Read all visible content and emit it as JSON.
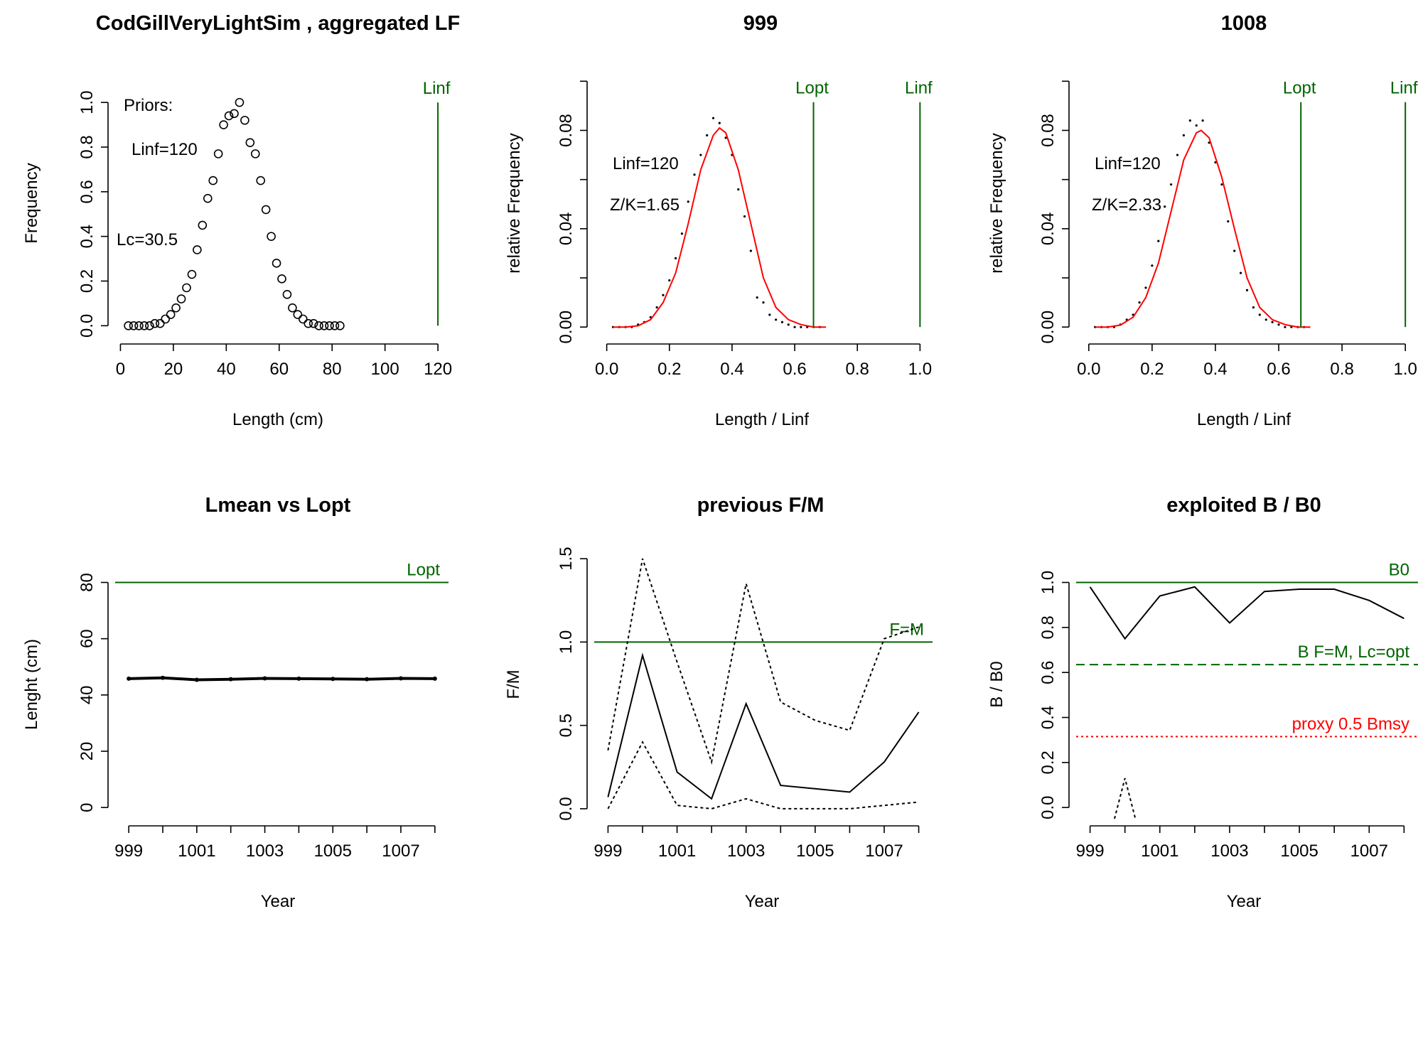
{
  "figure": {
    "background": "#ffffff",
    "line_color": "#000000",
    "fit_color": "#ff0000",
    "ref_color": "#006400",
    "proxy_color": "#ff0000"
  },
  "chart_data": [
    {
      "id": "p1",
      "type": "scatter",
      "title": "CodGillVeryLightSim , aggregated LF",
      "xlabel": "Length (cm)",
      "ylabel": "Frequency",
      "xlim": [
        -2,
        124
      ],
      "ylim": [
        -0.05,
        1.15
      ],
      "xticks": [
        0,
        20,
        40,
        60,
        80,
        100,
        120
      ],
      "yticks": [
        0.0,
        0.2,
        0.4,
        0.6,
        0.8,
        1.0
      ],
      "xtick_labels": [
        "0",
        "20",
        "40",
        "60",
        "80",
        "100",
        "120"
      ],
      "ytick_labels": [
        "0.0",
        "0.2",
        "0.4",
        "0.6",
        "0.8",
        "1.0"
      ],
      "points": {
        "x": [
          3,
          5,
          7,
          9,
          11,
          13,
          15,
          17,
          19,
          21,
          23,
          25,
          27,
          29,
          31,
          33,
          35,
          37,
          39,
          41,
          43,
          45,
          47,
          49,
          51,
          53,
          55,
          57,
          59,
          61,
          63,
          65,
          67,
          69,
          71,
          73,
          75,
          77,
          79,
          81,
          83
        ],
        "y": [
          0.0,
          0.0,
          0.0,
          0.0,
          0.0,
          0.01,
          0.01,
          0.03,
          0.05,
          0.08,
          0.12,
          0.17,
          0.23,
          0.34,
          0.45,
          0.57,
          0.65,
          0.77,
          0.9,
          0.94,
          0.95,
          1.0,
          0.92,
          0.82,
          0.77,
          0.65,
          0.52,
          0.4,
          0.28,
          0.21,
          0.14,
          0.08,
          0.05,
          0.03,
          0.01,
          0.01,
          0.0,
          0.0,
          0.0,
          0.0,
          0.0
        ]
      },
      "vlines": [
        {
          "x": 120,
          "y_top": 1.0,
          "label": "Linf"
        }
      ],
      "annotations": [
        "Priors:",
        "Linf=120",
        "Lc=30.5"
      ]
    },
    {
      "id": "p2",
      "type": "line",
      "title": "999",
      "xlabel": "Length / Linf",
      "ylabel": "relative Frequency",
      "xlim": [
        -0.04,
        1.04
      ],
      "ylim": [
        -0.004,
        0.105
      ],
      "xticks": [
        0.0,
        0.2,
        0.4,
        0.6,
        0.8,
        1.0
      ],
      "yticks": [
        0.0,
        0.02,
        0.04,
        0.06,
        0.08,
        0.1
      ],
      "xtick_labels": [
        "0.0",
        "0.2",
        "0.4",
        "0.6",
        "0.8",
        "1.0"
      ],
      "ytick_labels": [
        "0.00",
        "",
        "0.04",
        "",
        "0.08",
        ""
      ],
      "fit": {
        "x": [
          0.02,
          0.06,
          0.1,
          0.14,
          0.18,
          0.22,
          0.26,
          0.3,
          0.34,
          0.36,
          0.38,
          0.42,
          0.46,
          0.5,
          0.54,
          0.58,
          0.62,
          0.66,
          0.7
        ],
        "y": [
          0.0,
          0.0,
          0.0005,
          0.003,
          0.01,
          0.022,
          0.042,
          0.064,
          0.078,
          0.081,
          0.079,
          0.064,
          0.042,
          0.02,
          0.008,
          0.003,
          0.001,
          0.0,
          0.0
        ]
      },
      "obs": {
        "x": [
          0.02,
          0.04,
          0.06,
          0.08,
          0.1,
          0.12,
          0.14,
          0.16,
          0.18,
          0.2,
          0.22,
          0.24,
          0.26,
          0.28,
          0.3,
          0.32,
          0.34,
          0.36,
          0.38,
          0.4,
          0.42,
          0.44,
          0.46,
          0.48,
          0.5,
          0.52,
          0.54,
          0.56,
          0.58,
          0.6,
          0.62,
          0.64,
          0.66,
          0.68
        ],
        "y": [
          0.0,
          0.0,
          0.0,
          0.0,
          0.001,
          0.002,
          0.004,
          0.008,
          0.013,
          0.019,
          0.028,
          0.038,
          0.051,
          0.062,
          0.07,
          0.078,
          0.085,
          0.083,
          0.077,
          0.07,
          0.056,
          0.045,
          0.031,
          0.012,
          0.01,
          0.005,
          0.003,
          0.002,
          0.001,
          0.0,
          0.0,
          0.0,
          0.0,
          0.0
        ]
      },
      "vlines": [
        {
          "x": 0.66,
          "y_top": 0.0915,
          "label": "Lopt"
        },
        {
          "x": 1.0,
          "y_top": 0.0915,
          "label": "Linf"
        }
      ],
      "annotations": [
        "Linf=120",
        "Z/K=1.65"
      ]
    },
    {
      "id": "p3",
      "type": "line",
      "title": "1008",
      "xlabel": "Length / Linf",
      "ylabel": "relative Frequency",
      "xlim": [
        -0.04,
        1.04
      ],
      "ylim": [
        -0.004,
        0.105
      ],
      "xticks": [
        0.0,
        0.2,
        0.4,
        0.6,
        0.8,
        1.0
      ],
      "yticks": [
        0.0,
        0.02,
        0.04,
        0.06,
        0.08,
        0.1
      ],
      "xtick_labels": [
        "0.0",
        "0.2",
        "0.4",
        "0.6",
        "0.8",
        "1.0"
      ],
      "ytick_labels": [
        "0.00",
        "",
        "0.04",
        "",
        "0.08",
        ""
      ],
      "fit": {
        "x": [
          0.02,
          0.06,
          0.1,
          0.14,
          0.18,
          0.22,
          0.26,
          0.3,
          0.34,
          0.355,
          0.38,
          0.42,
          0.46,
          0.5,
          0.54,
          0.58,
          0.62,
          0.66,
          0.7
        ],
        "y": [
          0.0,
          0.0,
          0.0008,
          0.004,
          0.012,
          0.026,
          0.047,
          0.068,
          0.079,
          0.08,
          0.077,
          0.061,
          0.04,
          0.02,
          0.008,
          0.003,
          0.001,
          0.0,
          0.0
        ]
      },
      "obs": {
        "x": [
          0.02,
          0.04,
          0.06,
          0.08,
          0.1,
          0.12,
          0.14,
          0.16,
          0.18,
          0.2,
          0.22,
          0.24,
          0.26,
          0.28,
          0.3,
          0.32,
          0.34,
          0.36,
          0.38,
          0.4,
          0.42,
          0.44,
          0.46,
          0.48,
          0.5,
          0.52,
          0.54,
          0.56,
          0.58,
          0.6,
          0.62,
          0.64,
          0.66,
          0.68
        ],
        "y": [
          0.0,
          0.0,
          0.0,
          0.0,
          0.001,
          0.003,
          0.005,
          0.01,
          0.016,
          0.025,
          0.035,
          0.049,
          0.058,
          0.07,
          0.078,
          0.084,
          0.082,
          0.084,
          0.075,
          0.067,
          0.058,
          0.043,
          0.031,
          0.022,
          0.015,
          0.008,
          0.005,
          0.003,
          0.002,
          0.001,
          0.0,
          0.0,
          0.0,
          0.0
        ]
      },
      "vlines": [
        {
          "x": 0.67,
          "y_top": 0.0915,
          "label": "Lopt"
        },
        {
          "x": 1.0,
          "y_top": 0.0915,
          "label": "Linf"
        }
      ],
      "annotations": [
        "Linf=120",
        "Z/K=2.33"
      ]
    },
    {
      "id": "p4",
      "type": "line",
      "title": "Lmean vs Lopt",
      "xlabel": "Year",
      "ylabel": "Lenght (cm)",
      "xlim": [
        998.6,
        1008.4
      ],
      "ylim": [
        -4,
        92
      ],
      "xticks": [
        999,
        1000,
        1001,
        1002,
        1003,
        1004,
        1005,
        1006,
        1007,
        1008
      ],
      "xtick_labels": [
        "999",
        "",
        "1001",
        "",
        "1003",
        "",
        "1005",
        "",
        "1007",
        ""
      ],
      "yticks": [
        0,
        20,
        40,
        60,
        80
      ],
      "ytick_labels": [
        "0",
        "20",
        "40",
        "60",
        "80"
      ],
      "series": [
        {
          "x": [
            999,
            1000,
            1001,
            1002,
            1003,
            1004,
            1005,
            1006,
            1007,
            1008
          ],
          "y": [
            45.8,
            46.1,
            45.4,
            45.6,
            45.9,
            45.8,
            45.7,
            45.6,
            45.9,
            45.8
          ]
        }
      ],
      "hlines": [
        {
          "y": 80,
          "label": "Lopt"
        }
      ]
    },
    {
      "id": "p5",
      "type": "line",
      "title": "previous F/M",
      "xlabel": "Year",
      "ylabel": "F/M",
      "xlim": [
        998.6,
        1008.4
      ],
      "ylim": [
        -0.06,
        1.56
      ],
      "xticks": [
        999,
        1000,
        1001,
        1002,
        1003,
        1004,
        1005,
        1006,
        1007,
        1008
      ],
      "xtick_labels": [
        "999",
        "",
        "1001",
        "",
        "1003",
        "",
        "1005",
        "",
        "1007",
        ""
      ],
      "yticks": [
        0.0,
        0.5,
        1.0,
        1.5
      ],
      "ytick_labels": [
        "0.0",
        "0.5",
        "1.0",
        "1.5"
      ],
      "series": [
        {
          "style": "solid",
          "x": [
            999,
            1000,
            1001,
            1002,
            1003,
            1004,
            1005,
            1006,
            1007,
            1008
          ],
          "y": [
            0.07,
            0.92,
            0.22,
            0.06,
            0.63,
            0.14,
            0.12,
            0.1,
            0.28,
            0.58
          ]
        },
        {
          "style": "dotted",
          "x": [
            999,
            1000,
            1001,
            1002,
            1003,
            1004,
            1005,
            1006,
            1007,
            1008
          ],
          "y": [
            0.35,
            1.5,
            0.88,
            0.28,
            1.35,
            0.64,
            0.53,
            0.47,
            1.02,
            1.09
          ]
        },
        {
          "style": "dotted",
          "x": [
            999,
            1000,
            1001,
            1002,
            1003,
            1004,
            1005,
            1006,
            1007,
            1008
          ],
          "y": [
            0.0,
            0.4,
            0.02,
            0.0,
            0.06,
            0.0,
            0.0,
            0.0,
            0.02,
            0.04
          ]
        }
      ],
      "hlines": [
        {
          "y": 1.0,
          "label": "F=M"
        }
      ]
    },
    {
      "id": "p6",
      "type": "line",
      "title": "exploited B / B0",
      "xlabel": "Year",
      "ylabel": "B / B0",
      "xlim": [
        998.6,
        1008.4
      ],
      "ylim": [
        -0.05,
        1.15
      ],
      "xticks": [
        999,
        1000,
        1001,
        1002,
        1003,
        1004,
        1005,
        1006,
        1007,
        1008
      ],
      "xtick_labels": [
        "999",
        "",
        "1001",
        "",
        "1003",
        "",
        "1005",
        "",
        "1007",
        ""
      ],
      "yticks": [
        0.0,
        0.2,
        0.4,
        0.6,
        0.8,
        1.0
      ],
      "ytick_labels": [
        "0.0",
        "0.2",
        "0.4",
        "0.6",
        "0.8",
        "1.0"
      ],
      "series": [
        {
          "style": "solid",
          "x": [
            999,
            1000,
            1001,
            1002,
            1003,
            1004,
            1005,
            1006,
            1007,
            1008
          ],
          "y": [
            0.98,
            0.75,
            0.94,
            0.98,
            0.82,
            0.96,
            0.97,
            0.97,
            0.92,
            0.84
          ]
        },
        {
          "style": "dotted",
          "x": [
            999.7,
            1000,
            1000.3
          ],
          "y": [
            -0.05,
            0.13,
            -0.05
          ]
        }
      ],
      "hlines": [
        {
          "y": 1.0,
          "label": "B0",
          "style": "solid",
          "color_key": "ref_color"
        },
        {
          "y": 0.635,
          "label": "B F=M, Lc=opt",
          "style": "dashed",
          "color_key": "ref_color"
        },
        {
          "y": 0.315,
          "label": "proxy 0.5 Bmsy",
          "style": "dotted",
          "color_key": "proxy_color"
        }
      ]
    }
  ]
}
